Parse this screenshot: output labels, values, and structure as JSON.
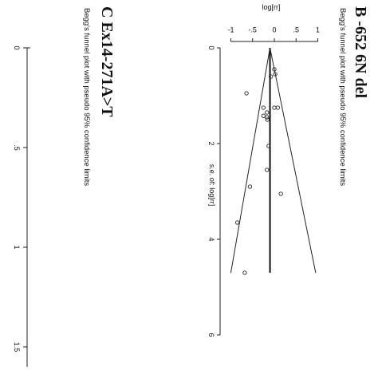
{
  "panels": {
    "b": {
      "label": "B -652 6N del",
      "subtitle": "Begg's funnel plot with pseudo 95% confidence limits",
      "xlabel": "s.e. of: log[rr]",
      "ylabel": "log[rr]"
    },
    "c": {
      "label": "C Ex14-271A>T",
      "subtitle": "Begg's funnel plot with pseudo 95% confidence limits"
    }
  },
  "chart_data": [
    {
      "type": "scatter",
      "panel": "B",
      "title": "Begg's funnel plot with pseudo 95% confidence limits",
      "xlabel": "s.e. of: log[rr]",
      "ylabel": "log[rr]",
      "x_ticks": [
        "0",
        "2",
        "4",
        "6"
      ],
      "y_ticks": [
        "-1",
        "-.5",
        "0",
        ".5",
        "1"
      ],
      "xlim": [
        0,
        6
      ],
      "ylim": [
        -1.1,
        1.1
      ],
      "pooled_estimate": -0.1,
      "funnel_slope": 1.96,
      "funnel_limits": {
        "se_max": 4.7,
        "upper_at_max": 0.95,
        "lower_at_max": -1.0
      },
      "x": [
        0.45,
        0.55,
        0.6,
        0.95,
        1.25,
        1.25,
        1.25,
        1.35,
        1.42,
        1.45,
        1.5,
        2.05,
        2.55,
        2.9,
        3.05,
        3.65,
        4.7
      ],
      "y": [
        0.0,
        0.02,
        -0.08,
        -0.64,
        -0.25,
        0.0,
        0.08,
        -0.17,
        -0.25,
        -0.17,
        -0.16,
        -0.13,
        -0.17,
        -0.56,
        0.15,
        -0.85,
        -0.68
      ],
      "orientation": "rotated 90deg clockwise"
    },
    {
      "type": "scatter",
      "panel": "C",
      "title": "Begg's funnel plot with pseudo 95% confidence limits",
      "x_ticks": [
        "0",
        ".5",
        "1",
        "1.5"
      ],
      "orientation": "rotated 90deg clockwise"
    }
  ]
}
